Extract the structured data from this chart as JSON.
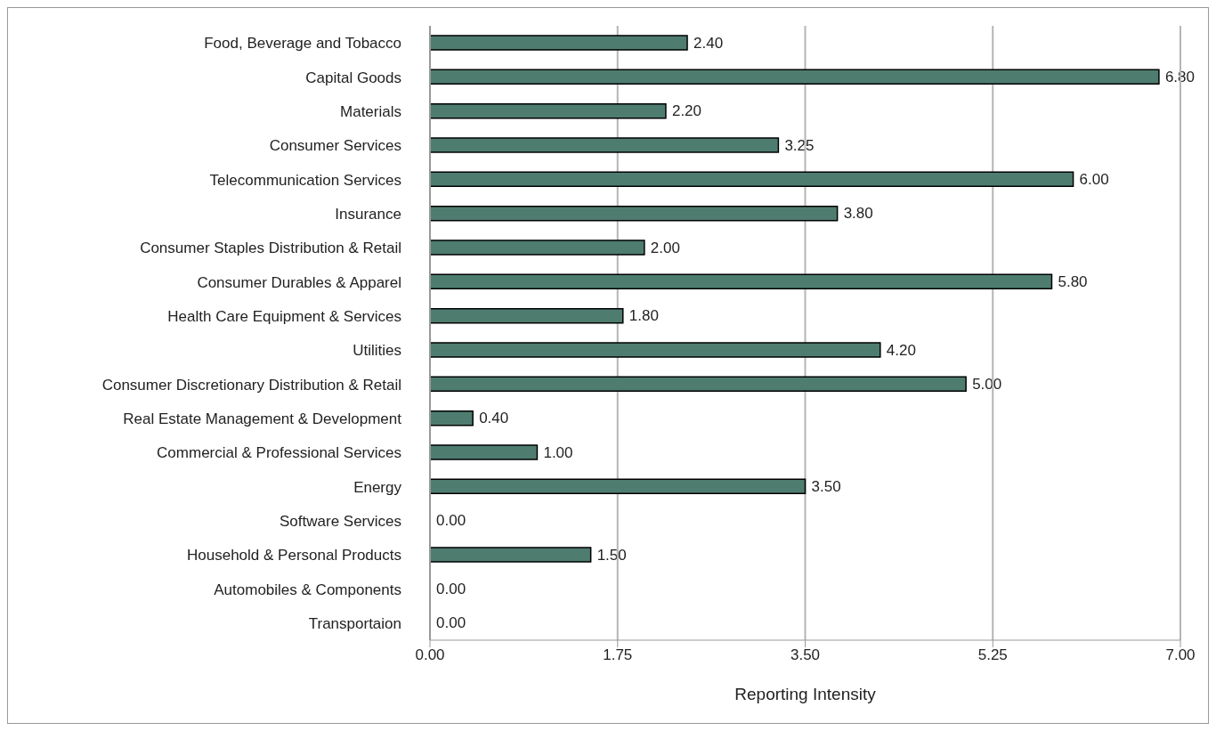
{
  "chart_data": {
    "type": "bar",
    "orientation": "horizontal",
    "xlabel": "Reporting Intensity",
    "categories": [
      "Food, Beverage and Tobacco",
      "Capital Goods",
      "Materials",
      "Consumer Services",
      "Telecommunication Services",
      "Insurance",
      "Consumer Staples Distribution & Retail",
      "Consumer Durables & Apparel",
      "Health Care Equipment & Services",
      "Utilities",
      "Consumer Discretionary Distribution & Retail",
      "Real Estate Management & Development",
      "Commercial & Professional Services",
      "Energy",
      "Software Services",
      "Household & Personal Products",
      "Automobiles & Components",
      "Transportaion"
    ],
    "values": [
      2.4,
      6.8,
      2.2,
      3.25,
      6.0,
      3.8,
      2.0,
      5.8,
      1.8,
      4.2,
      5.0,
      0.4,
      1.0,
      3.5,
      0,
      1.5,
      0,
      0
    ],
    "value_labels": [
      "2.40",
      "6.80",
      "2.20",
      "3.25",
      "6.00",
      "3.80",
      "2.00",
      "5.80",
      "1.80",
      "4.20",
      "5.00",
      "0.40",
      "1.00",
      "3.50",
      "0.00",
      "1.50",
      "0.00",
      "0.00"
    ],
    "color": "#4e7d70",
    "xlim": [
      0,
      7
    ],
    "xticks": [
      {
        "value": 0,
        "label": "0.00"
      },
      {
        "value": 1.75,
        "label": "1.75"
      },
      {
        "value": 3.5,
        "label": "3.50"
      },
      {
        "value": 5.25,
        "label": "5.25"
      },
      {
        "value": 7,
        "label": "7.00"
      }
    ],
    "grid": "x",
    "legend": false
  }
}
